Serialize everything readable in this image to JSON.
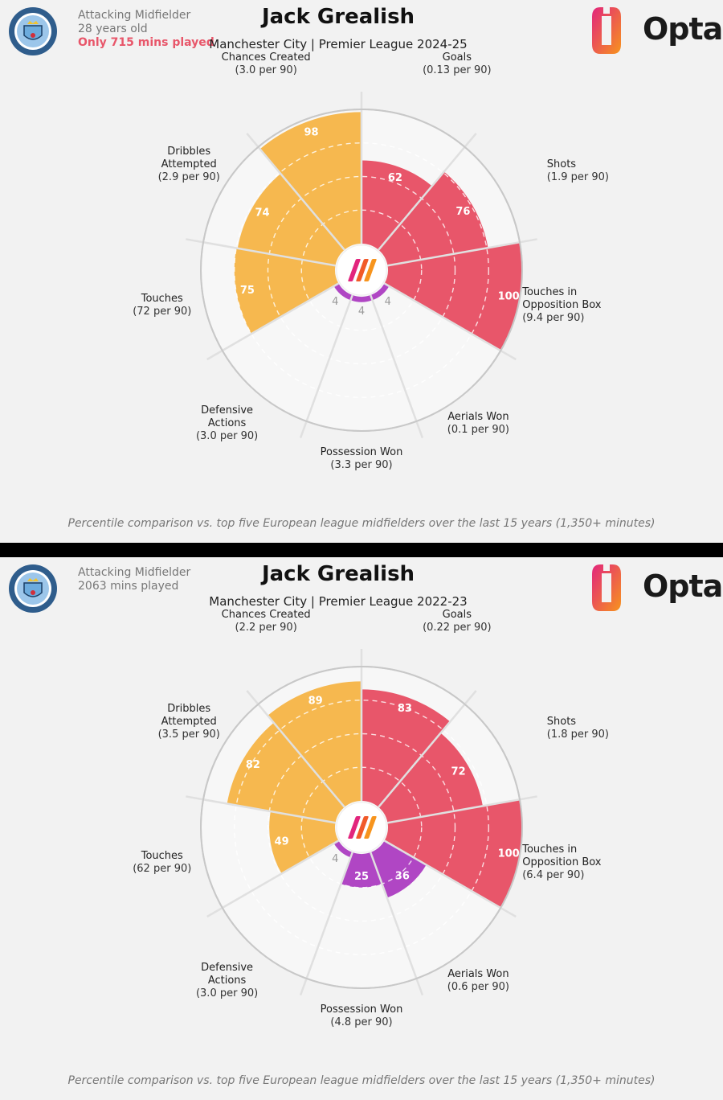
{
  "panels": [
    {
      "position": "Attacking Midfielder",
      "age": "28 years old",
      "warning": "Only 715 mins played",
      "title": "Jack Grealish",
      "subtitle": "Manchester City | Premier League 2024-25",
      "brand": "Opta",
      "footnote": "Percentile comparison vs. top five European league midfielders over the last 15 years (1,350+ minutes)",
      "chart_data": {
        "type": "polar-bar",
        "title": "Jack Grealish",
        "rlim": [
          0,
          100
        ],
        "categories": [
          {
            "name": [
              "Goals"
            ],
            "per90": "(0.13 per 90)",
            "value": 62,
            "color": "#e8566a"
          },
          {
            "name": [
              "Shots"
            ],
            "per90": "(1.9 per 90)",
            "value": 76,
            "color": "#e8566a"
          },
          {
            "name": [
              "Touches in",
              "Opposition Box"
            ],
            "per90": "(9.4 per 90)",
            "value": 100,
            "color": "#e8566a"
          },
          {
            "name": [
              "Aerials Won"
            ],
            "per90": "(0.1 per 90)",
            "value": 4,
            "color": "#b046c4"
          },
          {
            "name": [
              "Possession Won"
            ],
            "per90": "(3.3 per 90)",
            "value": 4,
            "color": "#b046c4"
          },
          {
            "name": [
              "Defensive",
              "Actions"
            ],
            "per90": "(3.0 per 90)",
            "value": 4,
            "color": "#b046c4"
          },
          {
            "name": [
              "Touches"
            ],
            "per90": "(72 per 90)",
            "value": 75,
            "color": "#f6b84f"
          },
          {
            "name": [
              "Dribbles",
              "Attempted"
            ],
            "per90": "(2.9 per 90)",
            "value": 74,
            "color": "#f6b84f"
          },
          {
            "name": [
              "Chances Created"
            ],
            "per90": "(3.0 per 90)",
            "value": 98,
            "color": "#f6b84f"
          }
        ]
      }
    },
    {
      "position": "Attacking Midfielder",
      "age": "2063 mins played",
      "warning": "",
      "title": "Jack Grealish",
      "subtitle": "Manchester City | Premier League 2022-23",
      "brand": "Opta",
      "footnote": "Percentile comparison vs. top five European league midfielders over the last 15 years (1,350+ minutes)",
      "chart_data": {
        "type": "polar-bar",
        "title": "Jack Grealish",
        "rlim": [
          0,
          100
        ],
        "categories": [
          {
            "name": [
              "Goals"
            ],
            "per90": "(0.22 per 90)",
            "value": 83,
            "color": "#e8566a"
          },
          {
            "name": [
              "Shots"
            ],
            "per90": "(1.8 per 90)",
            "value": 72,
            "color": "#e8566a"
          },
          {
            "name": [
              "Touches in",
              "Opposition Box"
            ],
            "per90": "(6.4 per 90)",
            "value": 100,
            "color": "#e8566a"
          },
          {
            "name": [
              "Aerials Won"
            ],
            "per90": "(0.6 per 90)",
            "value": 36,
            "color": "#b046c4"
          },
          {
            "name": [
              "Possession Won"
            ],
            "per90": "(4.8 per 90)",
            "value": 25,
            "color": "#b046c4"
          },
          {
            "name": [
              "Defensive",
              "Actions"
            ],
            "per90": "(3.0 per 90)",
            "value": 4,
            "color": "#b046c4"
          },
          {
            "name": [
              "Touches"
            ],
            "per90": "(62 per 90)",
            "value": 49,
            "color": "#f6b84f"
          },
          {
            "name": [
              "Dribbles",
              "Attempted"
            ],
            "per90": "(3.5 per 90)",
            "value": 82,
            "color": "#f6b84f"
          },
          {
            "name": [
              "Chances Created"
            ],
            "per90": "(2.2 per 90)",
            "value": 89,
            "color": "#f6b84f"
          }
        ]
      }
    }
  ]
}
